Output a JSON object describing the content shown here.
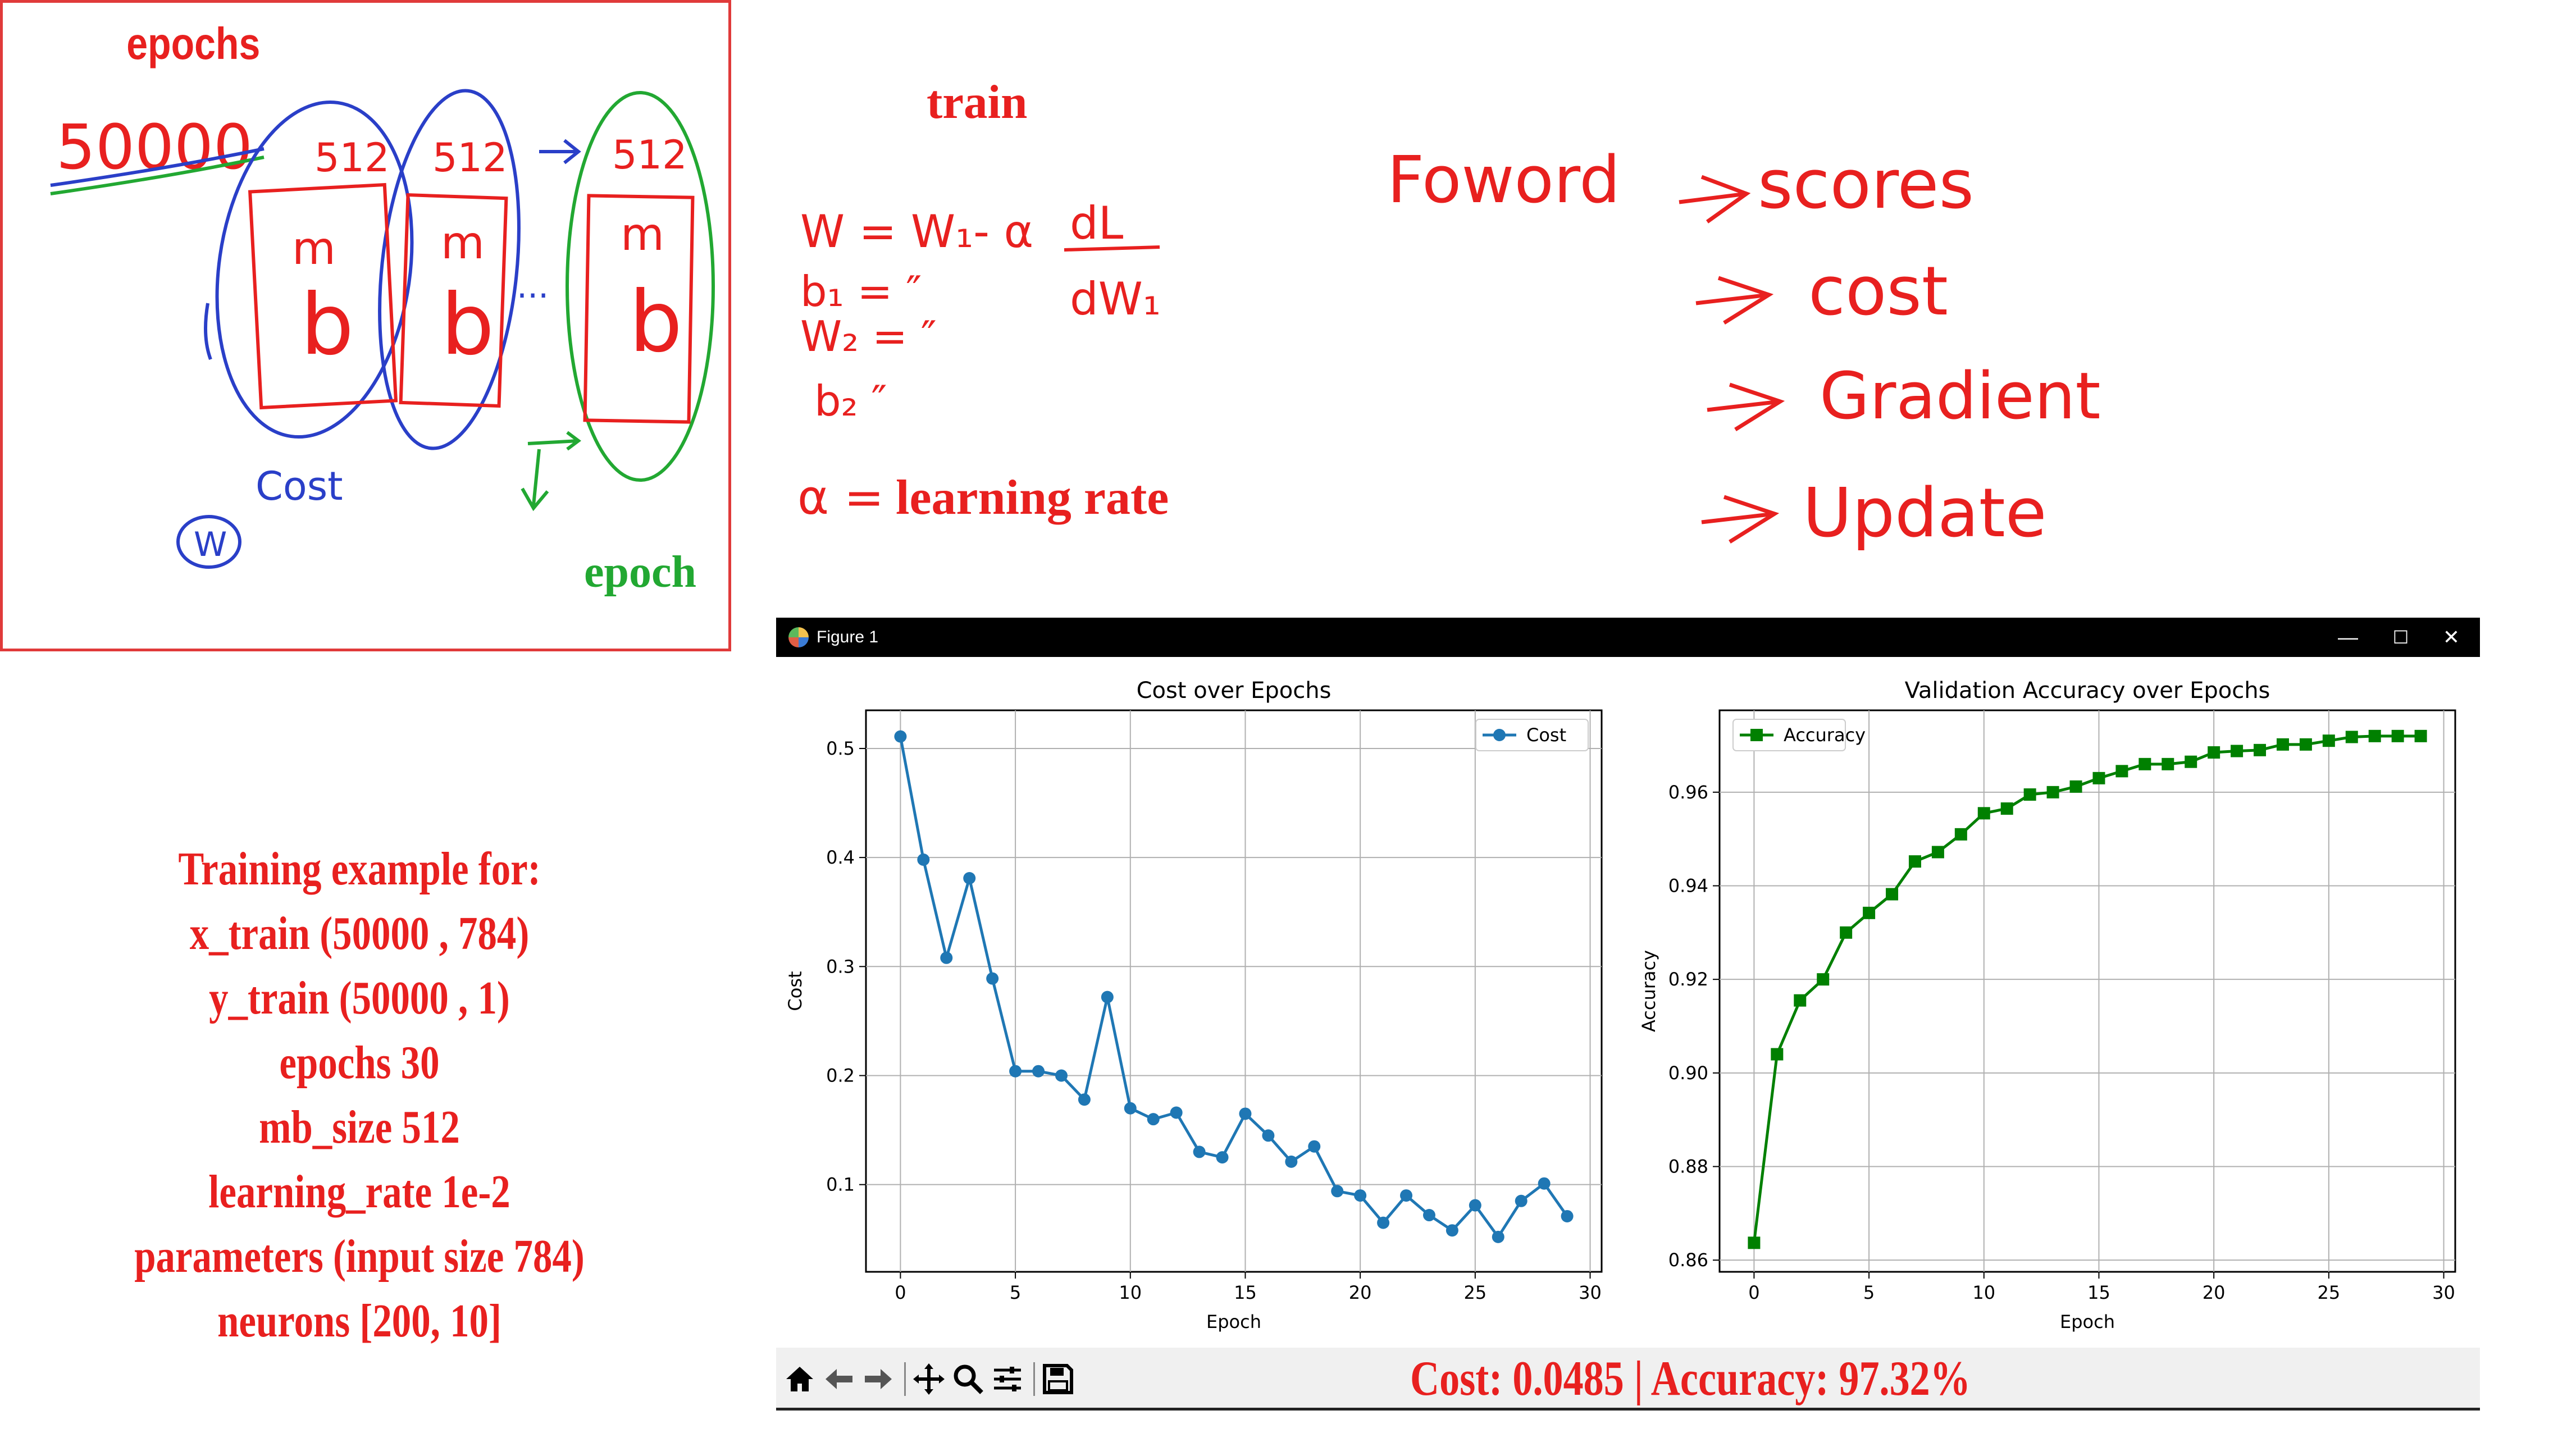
{
  "sketch": {
    "epochs_label": "epochs",
    "dataset_size": "50000",
    "batch_sizes": [
      "512",
      "512",
      "512"
    ],
    "batch_letters": [
      "m",
      "b"
    ],
    "ellipsis": "...",
    "cost_label": "Cost",
    "w_label": "W",
    "epoch_label": "epoch"
  },
  "train_notes": {
    "title": "train",
    "lines": [
      "W = W₁- α",
      "b₁ = ″",
      "W₂ = ″",
      "b₂ ″"
    ],
    "derivative_num": "dL",
    "derivative_den": "dW₁",
    "alpha_def": "α =",
    "alpha_text": "learning rate"
  },
  "flow_notes": {
    "forward": "Foword",
    "steps": [
      "scores",
      "cost",
      "Gradient",
      "Update"
    ]
  },
  "training_info": {
    "lines": [
      "Training  example  for:",
      "x_train  (50000  ,  784)",
      "y_train  (50000  ,  1)",
      "epochs  30",
      "mb_size    512",
      "learning_rate    1e-2",
      "parameters  (input  size  784)",
      "neurons  [200,  10]"
    ]
  },
  "window": {
    "title": "Figure 1",
    "minimize": "—",
    "maximize": "☐",
    "close": "✕",
    "toolbar_icons": [
      "home-icon",
      "back-icon",
      "forward-icon",
      "pan-icon",
      "zoom-icon",
      "configure-icon",
      "save-icon"
    ],
    "status": "Cost:  0.0485   |   Accuracy:  97.32%"
  },
  "colors": {
    "accent_red": "#e8201f",
    "cost_line": "#1f77b4",
    "acc_line": "#008000",
    "sketch_blue": "#2a3fc8",
    "sketch_green": "#22a832"
  },
  "chart_data": [
    {
      "type": "line",
      "title": "Cost over Epochs",
      "xlabel": "Epoch",
      "ylabel": "Cost",
      "xlim": [
        -1.5,
        30.5
      ],
      "ylim": [
        0.02,
        0.535
      ],
      "xticks": [
        0,
        5,
        10,
        15,
        20,
        25,
        30
      ],
      "yticks": [
        0.1,
        0.2,
        0.3,
        0.4,
        0.5
      ],
      "grid": true,
      "legend": "top-right",
      "series": [
        {
          "name": "Cost",
          "marker": "circle",
          "x": [
            0,
            1,
            2,
            3,
            4,
            5,
            6,
            7,
            8,
            9,
            10,
            11,
            12,
            13,
            14,
            15,
            16,
            17,
            18,
            19,
            20,
            21,
            22,
            23,
            24,
            25,
            26,
            27,
            28,
            29
          ],
          "values": [
            0.511,
            0.398,
            0.308,
            0.381,
            0.289,
            0.204,
            0.204,
            0.2,
            0.178,
            0.272,
            0.17,
            0.16,
            0.166,
            0.13,
            0.125,
            0.165,
            0.145,
            0.121,
            0.135,
            0.094,
            0.09,
            0.065,
            0.09,
            0.072,
            0.058,
            0.081,
            0.052,
            0.085,
            0.101,
            0.071
          ]
        }
      ]
    },
    {
      "type": "line",
      "title": "Validation Accuracy over Epochs",
      "xlabel": "Epoch",
      "ylabel": "Accuracy",
      "xlim": [
        -1.5,
        30.5
      ],
      "ylim": [
        0.8575,
        0.9775
      ],
      "xticks": [
        0,
        5,
        10,
        15,
        20,
        25,
        30
      ],
      "yticks": [
        0.86,
        0.88,
        0.9,
        0.92,
        0.94,
        0.96
      ],
      "grid": true,
      "legend": "top-left",
      "series": [
        {
          "name": "Accuracy",
          "marker": "square",
          "x": [
            0,
            1,
            2,
            3,
            4,
            5,
            6,
            7,
            8,
            9,
            10,
            11,
            12,
            13,
            14,
            15,
            16,
            17,
            18,
            19,
            20,
            21,
            22,
            23,
            24,
            25,
            26,
            27,
            28,
            29
          ],
          "values": [
            0.8637,
            0.904,
            0.9155,
            0.92,
            0.93,
            0.9342,
            0.9382,
            0.9452,
            0.9472,
            0.951,
            0.9555,
            0.9565,
            0.9595,
            0.96,
            0.9612,
            0.963,
            0.9645,
            0.966,
            0.966,
            0.9665,
            0.9685,
            0.9688,
            0.969,
            0.9702,
            0.9702,
            0.971,
            0.9718,
            0.972,
            0.972,
            0.972
          ]
        }
      ]
    }
  ]
}
